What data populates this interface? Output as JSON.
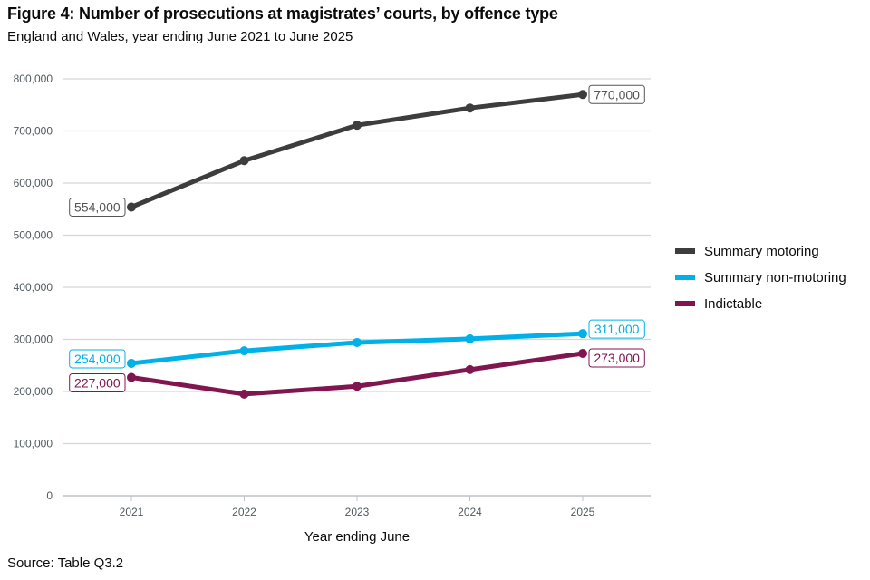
{
  "header": {
    "title": "Figure 4: Number of prosecutions at magistrates’ courts, by offence type",
    "subtitle": "England and Wales, year ending June 2021 to June 2025"
  },
  "footer": {
    "source": "Source: Table Q3.2"
  },
  "chart_data": {
    "type": "line",
    "title": "Figure 4: Number of prosecutions at magistrates’ courts, by offence type",
    "subtitle": "England and Wales, year ending June 2021 to June 2025",
    "xlabel": "Year ending June",
    "ylabel": "",
    "x": [
      "2021",
      "2022",
      "2023",
      "2024",
      "2025"
    ],
    "ylim": [
      0,
      800000
    ],
    "yticks": [
      0,
      100000,
      200000,
      300000,
      400000,
      500000,
      600000,
      700000,
      800000
    ],
    "ytick_labels": [
      "0",
      "100,000",
      "200,000",
      "300,000",
      "400,000",
      "500,000",
      "600,000",
      "700,000",
      "800,000"
    ],
    "grid": "horizontal",
    "legend_position": "right",
    "series": [
      {
        "name": "Summary motoring",
        "color": "#3d3d3d",
        "values": [
          554000,
          643000,
          711000,
          744000,
          770000
        ],
        "labels": {
          "first": "554,000",
          "last": "770,000"
        }
      },
      {
        "name": "Summary non-motoring",
        "color": "#00b0e8",
        "values": [
          254000,
          278000,
          294000,
          301000,
          311000
        ],
        "labels": {
          "first": "254,000",
          "last": "311,000"
        }
      },
      {
        "name": "Indictable",
        "color": "#801650",
        "values": [
          227000,
          195000,
          210000,
          242000,
          273000
        ],
        "labels": {
          "first": "227,000",
          "last": "273,000"
        }
      }
    ]
  }
}
